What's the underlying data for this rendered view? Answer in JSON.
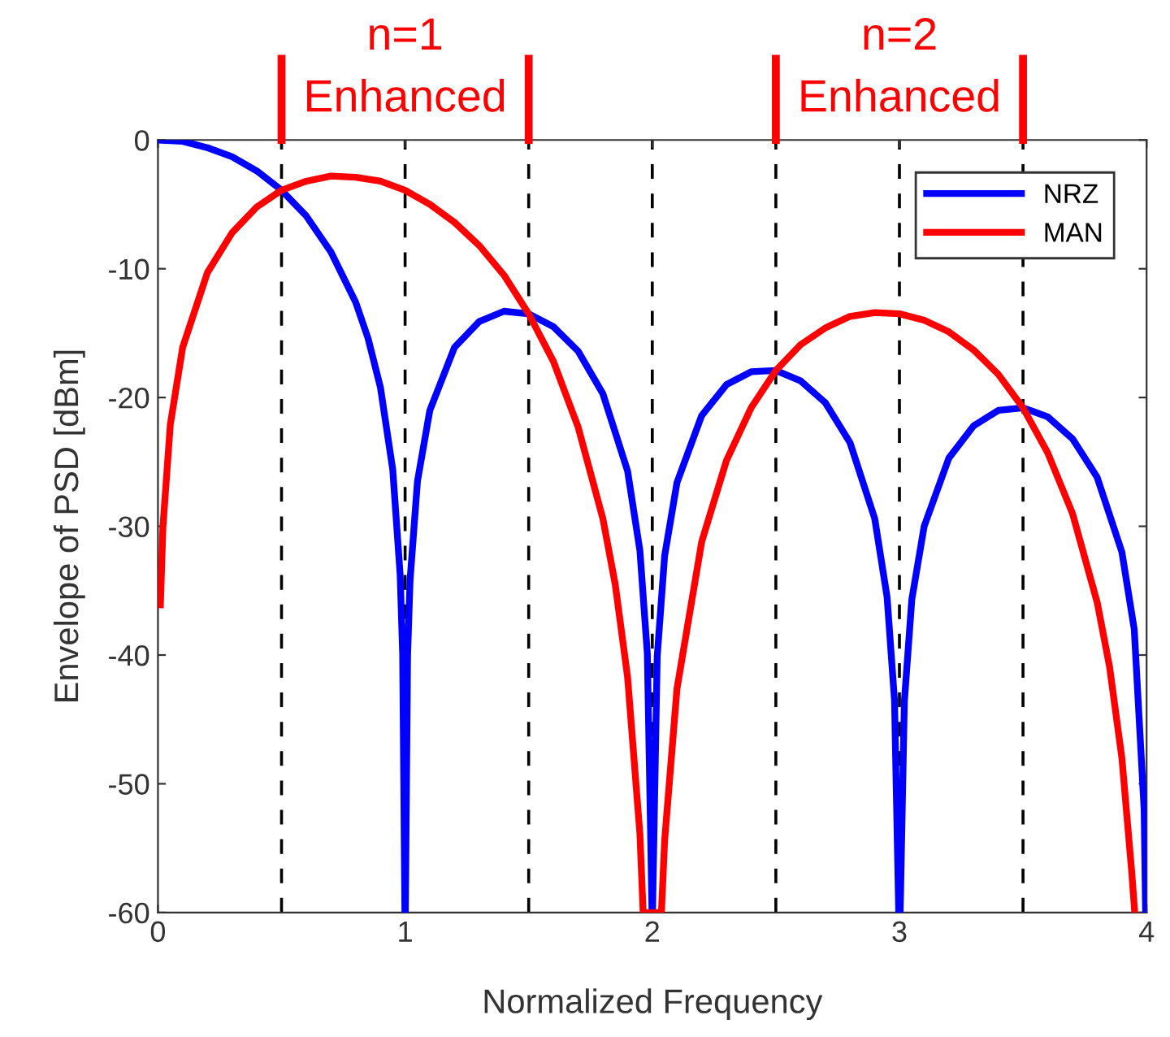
{
  "chart_data": {
    "type": "line",
    "xlabel": "Normalized Frequency",
    "ylabel": "Envelope of PSD [dBm]",
    "xlim": [
      0,
      4
    ],
    "ylim": [
      -60,
      0
    ],
    "xticks": [
      0,
      1,
      2,
      3,
      4
    ],
    "yticks": [
      -60,
      -50,
      -40,
      -30,
      -20,
      -10,
      0
    ],
    "grid": false,
    "legend": "top right",
    "marker": "none",
    "line_style": "solid",
    "series": [
      {
        "name": "NRZ",
        "color": "#0000ff",
        "x": [
          0,
          0.1,
          0.2,
          0.3,
          0.4,
          0.5,
          0.6,
          0.7,
          0.8,
          0.85,
          0.9,
          0.95,
          0.98,
          0.99,
          0.999,
          1.001,
          1.01,
          1.02,
          1.05,
          1.1,
          1.2,
          1.3,
          1.4,
          1.5,
          1.6,
          1.7,
          1.8,
          1.9,
          1.95,
          1.98,
          1.999,
          2.001,
          2.02,
          2.05,
          2.1,
          2.2,
          2.3,
          2.4,
          2.5,
          2.6,
          2.7,
          2.8,
          2.9,
          2.95,
          2.98,
          2.997,
          3.003,
          3.02,
          3.05,
          3.1,
          3.2,
          3.3,
          3.4,
          3.5,
          3.6,
          3.7,
          3.8,
          3.9,
          3.95,
          3.99,
          3.996
        ],
        "values": [
          0,
          -0.1,
          -0.6,
          -1.3,
          -2.4,
          -3.9,
          -5.9,
          -8.7,
          -12.6,
          -15.4,
          -19.2,
          -25.6,
          -33.8,
          -39.9,
          -60,
          -60,
          -40.1,
          -34.2,
          -26.5,
          -21.0,
          -16.1,
          -14.1,
          -13.3,
          -13.5,
          -14.5,
          -16.4,
          -19.7,
          -25.7,
          -31.9,
          -39.9,
          -60,
          -60,
          -40.1,
          -32.3,
          -26.6,
          -21.4,
          -19.0,
          -18.0,
          -17.9,
          -18.7,
          -20.4,
          -23.5,
          -29.4,
          -35.5,
          -43.5,
          -60,
          -60,
          -43.6,
          -35.7,
          -30.0,
          -24.7,
          -22.2,
          -21.0,
          -20.8,
          -21.5,
          -23.2,
          -26.2,
          -32.0,
          -38.0,
          -52.0,
          -60
        ]
      },
      {
        "name": "MAN",
        "color": "#ff0000",
        "x": [
          0.01,
          0.02,
          0.05,
          0.1,
          0.2,
          0.3,
          0.4,
          0.5,
          0.6,
          0.7,
          0.8,
          0.9,
          1.0,
          1.1,
          1.2,
          1.3,
          1.4,
          1.5,
          1.6,
          1.7,
          1.8,
          1.85,
          1.9,
          1.95,
          1.963,
          2.037,
          2.05,
          2.1,
          2.2,
          2.3,
          2.4,
          2.5,
          2.6,
          2.7,
          2.8,
          2.9,
          3.0,
          3.1,
          3.2,
          3.3,
          3.4,
          3.5,
          3.6,
          3.7,
          3.8,
          3.85,
          3.9,
          3.94,
          3.952
        ],
        "values": [
          -36.1,
          -30.1,
          -22.1,
          -16.1,
          -10.3,
          -7.2,
          -5.2,
          -3.9,
          -3.2,
          -2.8,
          -2.9,
          -3.2,
          -3.9,
          -5.0,
          -6.4,
          -8.2,
          -10.5,
          -13.5,
          -17.2,
          -22.3,
          -29.4,
          -34.5,
          -41.7,
          -53.9,
          -60,
          -60,
          -54.4,
          -42.6,
          -31.2,
          -24.9,
          -20.8,
          -17.9,
          -15.9,
          -14.6,
          -13.7,
          -13.4,
          -13.5,
          -14.0,
          -14.9,
          -16.3,
          -18.2,
          -20.8,
          -24.3,
          -29.0,
          -35.9,
          -40.9,
          -48.0,
          -56.9,
          -60
        ]
      }
    ],
    "ref_lines": [
      {
        "axis": "x",
        "value": 0.5,
        "color": "#000000",
        "line_style": "dashed"
      },
      {
        "axis": "x",
        "value": 1,
        "color": "#000000",
        "line_style": "dashed"
      },
      {
        "axis": "x",
        "value": 1.5,
        "color": "#000000",
        "line_style": "dashed"
      },
      {
        "axis": "x",
        "value": 2,
        "color": "#000000",
        "line_style": "dashed"
      },
      {
        "axis": "x",
        "value": 2.5,
        "color": "#000000",
        "line_style": "dashed"
      },
      {
        "axis": "x",
        "value": 3,
        "color": "#000000",
        "line_style": "dashed"
      },
      {
        "axis": "x",
        "value": 3.5,
        "color": "#000000",
        "line_style": "dashed"
      }
    ],
    "annotations": [
      "n=1",
      "Enhanced",
      "n=2",
      "Enhanced"
    ]
  }
}
